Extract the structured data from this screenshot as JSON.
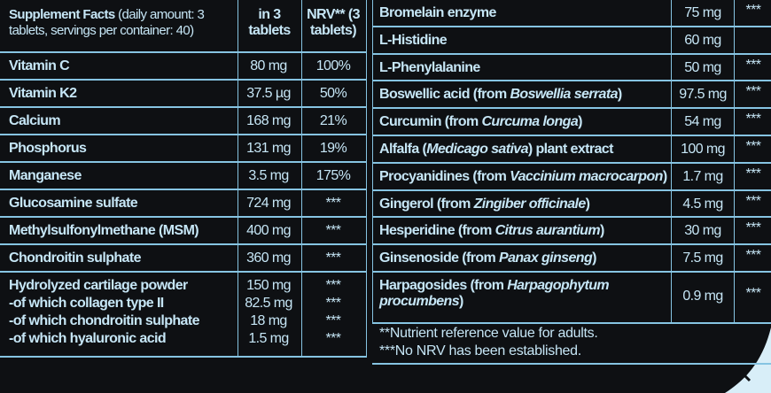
{
  "left": {
    "header": {
      "title": "Supplement Facts",
      "subtitle": "(daily amount: 3 tablets, servings per container: 40)",
      "amount": "in 3 tablets",
      "nrv": "NRV** (3 tablets)"
    },
    "rows": [
      {
        "name": "Vitamin C",
        "amount": "80 mg",
        "nrv": "100%"
      },
      {
        "name": "Vitamin K2",
        "amount": "37.5 µg",
        "nrv": "50%"
      },
      {
        "name": "Calcium",
        "amount": "168 mg",
        "nrv": "21%"
      },
      {
        "name": "Phosphorus",
        "amount": "131 mg",
        "nrv": "19%"
      },
      {
        "name": "Manganese",
        "amount": "3.5 mg",
        "nrv": "175%"
      },
      {
        "name": "Glucosamine sulfate",
        "amount": "724 mg",
        "nrv": "***"
      },
      {
        "name": "Methylsulfonylmethane (MSM)",
        "amount": "400 mg",
        "nrv": "***"
      },
      {
        "name": "Chondroitin sulphate",
        "amount": "360 mg",
        "nrv": "***"
      },
      {
        "lines": [
          {
            "name": "Hydrolyzed cartilage powder",
            "amount": "150 mg",
            "nrv": "***"
          },
          {
            "name": "-of which collagen type II",
            "amount": "82.5 mg",
            "nrv": "***"
          },
          {
            "name": "-of which chondroitin sulphate",
            "amount": "18 mg",
            "nrv": "***"
          },
          {
            "name": "-of which hyaluronic acid",
            "amount": "1.5 mg",
            "nrv": "***"
          }
        ]
      }
    ]
  },
  "right": {
    "rows": [
      {
        "name": [
          "Bromelain enzyme"
        ],
        "amount": "75 mg",
        "nrv": "***"
      },
      {
        "name": [
          "L-Histidine"
        ],
        "amount": "60 mg"
      },
      {
        "name": [
          "L-Phenylalanine"
        ],
        "amount": "50 mg",
        "nrv": "***"
      },
      {
        "name": [
          "Boswellic acid (from ",
          "Boswellia serrata",
          ")"
        ],
        "amount": "97.5 mg",
        "nrv": "***"
      },
      {
        "name": [
          "Curcumin (from ",
          "Curcuma longa",
          ")"
        ],
        "amount": "54 mg",
        "nrv": "***"
      },
      {
        "name": [
          "Alfalfa (",
          "Medicago sativa",
          ") plant extract"
        ],
        "amount": "100 mg",
        "nrv": "***"
      },
      {
        "name": [
          "Procyanidines (from ",
          "Vaccinium macrocarpon",
          ")"
        ],
        "amount": "1.7 mg",
        "nrv": "***"
      },
      {
        "name": [
          "Gingerol (from ",
          "Zingiber officinale",
          ")"
        ],
        "amount": "4.5 mg",
        "nrv": "***"
      },
      {
        "name": [
          "Hesperidine (from ",
          "Citrus aurantium",
          ")"
        ],
        "amount": "30 mg",
        "nrv": "***"
      },
      {
        "name": [
          "Ginsenoside (from ",
          "Panax ginseng",
          ")"
        ],
        "amount": "7.5 mg",
        "nrv": "***"
      },
      {
        "name": [
          "Harpagosides (from ",
          "Harpagophytum procumbens",
          ")"
        ],
        "amount": "0.9 mg",
        "nrv": "***"
      }
    ],
    "footnotes": [
      "**Nutrient reference value for adults.",
      "***No NRV has been established."
    ]
  }
}
